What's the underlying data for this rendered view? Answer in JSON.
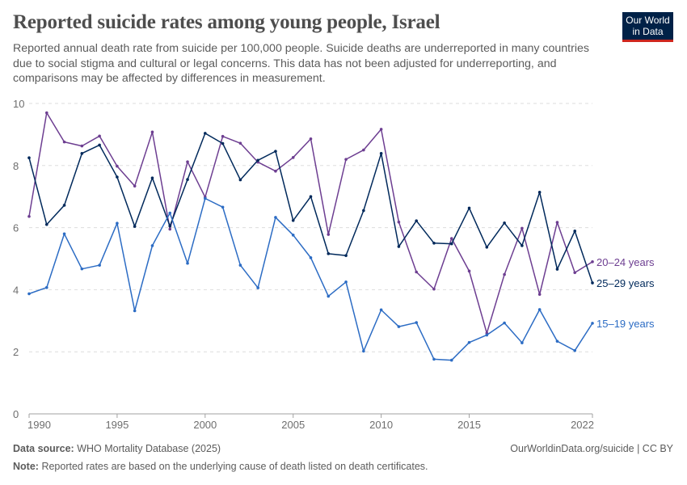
{
  "header": {
    "title": "Reported suicide rates among young people, Israel",
    "subtitle": "Reported annual death rate from suicide per 100,000 people. Suicide deaths are underreported in many countries due to social stigma and cultural or legal concerns. This data has not been adjusted for underreporting, and comparisons may be affected by differences in measurement.",
    "logo": "Our World in Data"
  },
  "footer": {
    "source_label": "Data source:",
    "source": "WHO Mortality Database (2025)",
    "url": "OurWorldinData.org/suicide | CC BY",
    "note_label": "Note:",
    "note": "Reported rates are based on the underlying cause of death listed on death certificates."
  },
  "chart_data": {
    "type": "line",
    "title": "Reported suicide rates among young people, Israel",
    "xlim": [
      1990,
      2022
    ],
    "ylim": [
      0,
      10
    ],
    "yticks": [
      0,
      2,
      4,
      6,
      8,
      10
    ],
    "xticks": [
      1990,
      1995,
      2000,
      2005,
      2010,
      2015,
      2022
    ],
    "grid": "horizontal dashed",
    "legend": "line-end labels right",
    "x": [
      1990,
      1991,
      1992,
      1993,
      1994,
      1995,
      1996,
      1997,
      1998,
      1999,
      2000,
      2001,
      2002,
      2003,
      2004,
      2005,
      2006,
      2007,
      2008,
      2009,
      2010,
      2011,
      2012,
      2013,
      2014,
      2015,
      2016,
      2017,
      2018,
      2019,
      2020,
      2021,
      2022
    ],
    "series": [
      {
        "name": "20–24 years",
        "color": "#6d3e91",
        "values": [
          6.36,
          9.7,
          8.76,
          8.63,
          8.95,
          7.98,
          7.34,
          9.08,
          5.95,
          8.12,
          6.98,
          8.94,
          8.72,
          8.11,
          7.82,
          8.26,
          8.86,
          5.78,
          8.2,
          8.5,
          9.17,
          6.18,
          4.57,
          4.02,
          5.65,
          4.6,
          2.6,
          4.49,
          5.98,
          3.85,
          6.17,
          4.55,
          4.9
        ]
      },
      {
        "name": "25–29 years",
        "color": "#00295b",
        "values": [
          8.25,
          6.1,
          6.72,
          8.39,
          8.66,
          7.63,
          6.04,
          7.6,
          6.05,
          7.55,
          9.04,
          8.71,
          7.54,
          8.17,
          8.46,
          6.23,
          7.0,
          5.16,
          5.1,
          6.55,
          8.39,
          5.39,
          6.22,
          5.5,
          5.48,
          6.63,
          5.37,
          6.15,
          5.42,
          7.14,
          4.66,
          5.89,
          4.22
        ]
      },
      {
        "name": "15–19 years",
        "color": "#2c6cc4",
        "values": [
          3.87,
          4.07,
          5.8,
          4.67,
          4.79,
          6.14,
          3.32,
          5.42,
          6.47,
          4.85,
          6.94,
          6.66,
          4.79,
          4.06,
          6.33,
          5.76,
          5.03,
          3.79,
          4.25,
          2.02,
          3.35,
          2.81,
          2.94,
          1.76,
          1.73,
          2.3,
          2.54,
          2.93,
          2.29,
          3.36,
          2.34,
          2.04,
          2.92
        ]
      }
    ]
  }
}
